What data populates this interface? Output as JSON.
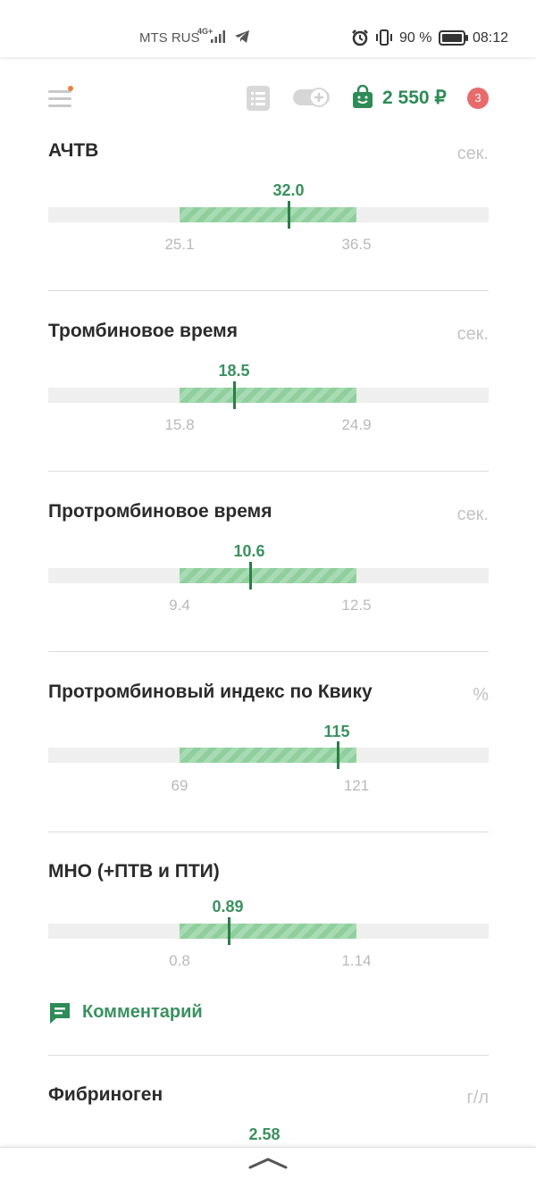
{
  "status_bar": {
    "carrier": "MTS RUS",
    "network": "4G+",
    "battery": "90 %",
    "time": "08:12"
  },
  "header": {
    "price": "2 550 ₽",
    "cart_count": "3",
    "icons": [
      "menu-icon",
      "list-icon",
      "toggle-add-icon",
      "shopping-bag-icon"
    ]
  },
  "results": [
    {
      "title": "АЧТВ",
      "unit": "сек.",
      "value": "32.0",
      "low": "25.1",
      "high": "36.5"
    },
    {
      "title": "Тромбиновое время",
      "unit": "сек.",
      "value": "18.5",
      "low": "15.8",
      "high": "24.9"
    },
    {
      "title": "Протромбиновое время",
      "unit": "сек.",
      "value": "10.6",
      "low": "9.4",
      "high": "12.5"
    },
    {
      "title": "Протромбиновый индекс по Квику",
      "unit": "%",
      "value": "115",
      "low": "69",
      "high": "121"
    },
    {
      "title": "МНО (+ПТВ и ПТИ)",
      "unit": "",
      "value": "0.89",
      "low": "0.8",
      "high": "1.14"
    },
    {
      "title": "Фибриноген",
      "unit": "г/л",
      "value": "2.58"
    }
  ],
  "comment": {
    "label": "Комментарий"
  },
  "colors": {
    "accent": "#2e8b57",
    "badge": "#e86b6b",
    "norm": "#8fcf9d"
  }
}
